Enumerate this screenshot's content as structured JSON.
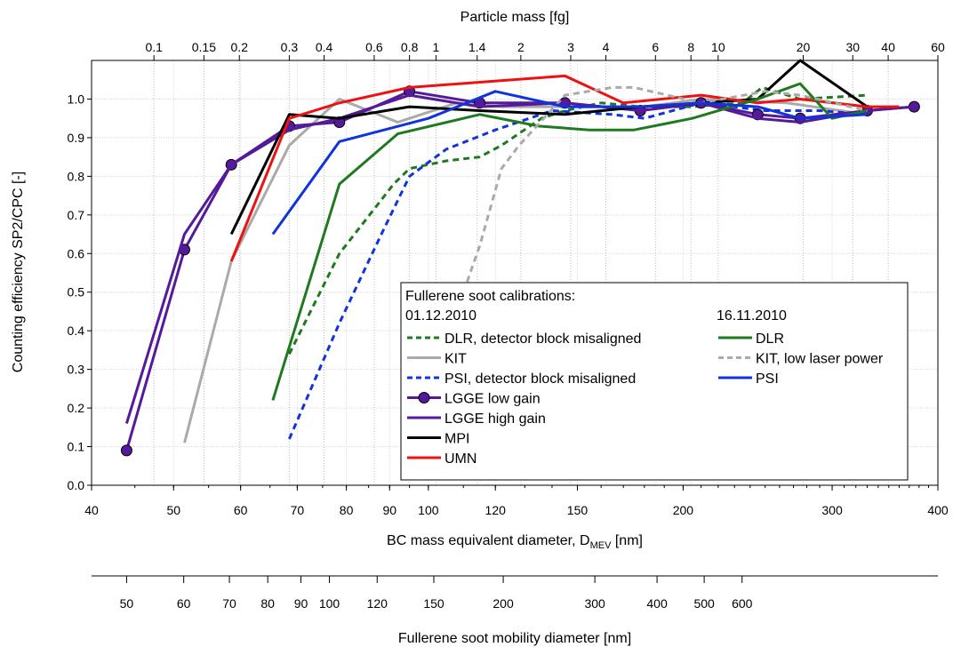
{
  "chart_data": {
    "type": "line",
    "ylabel": "Counting efficiency SP2/CPC [-]",
    "xlabel": "BC mass equivalent diameter, D",
    "xlabel_sub": "MEV",
    "xlabel_unit": " [nm]",
    "top_axis_label": "Particle mass [fg]",
    "second_bottom_axis_label": "Fullerene soot mobility diameter [nm]",
    "x_scale": "log",
    "xlim": [
      40,
      400
    ],
    "ylim": [
      0,
      1.1
    ],
    "grid": true,
    "x_ticks": [
      40,
      50,
      60,
      70,
      80,
      90,
      100,
      120,
      150,
      200,
      300,
      400
    ],
    "x_tick_labels": [
      "40",
      "50",
      "60",
      "70",
      "80",
      "90",
      "100",
      "120",
      "150",
      "200",
      "300",
      "400"
    ],
    "y_ticks": [
      0.0,
      0.1,
      0.2,
      0.3,
      0.4,
      0.5,
      0.6,
      0.7,
      0.8,
      0.9,
      1.0
    ],
    "y_tick_labels": [
      "0.0",
      "0.1",
      "0.2",
      "0.3",
      "0.4",
      "0.5",
      "0.6",
      "0.7",
      "0.8",
      "0.9",
      "1.0"
    ],
    "top_ticks": [
      0.1,
      0.15,
      0.2,
      0.3,
      0.4,
      0.6,
      0.8,
      1,
      1.4,
      2,
      3,
      4,
      6,
      8,
      10,
      20,
      30,
      40,
      60
    ],
    "top_tick_labels": [
      "0.1",
      "0.15",
      "0.2",
      "0.3",
      "0.4",
      "0.6",
      "0.8",
      "1",
      "1.4",
      "2",
      "3",
      "4",
      "6",
      "8",
      "10",
      "20",
      "30",
      "40",
      "60"
    ],
    "top_tick_diameters": [
      47.4,
      54.3,
      59.8,
      68.5,
      75.3,
      86.3,
      95.0,
      102.1,
      114.2,
      128.6,
      147.3,
      162.1,
      185.5,
      204.3,
      220.0,
      277.3,
      317.3,
      349.4,
      400.0
    ],
    "mobility_ticks": [
      50,
      60,
      70,
      80,
      90,
      100,
      120,
      150,
      200,
      300,
      400,
      500,
      600
    ],
    "mobility_tick_labels": [
      "50",
      "60",
      "70",
      "80",
      "90",
      "100",
      "120",
      "150",
      "200",
      "300",
      "400",
      "500",
      "600"
    ],
    "mobility_tick_diameters": [
      44.0,
      51.4,
      58.2,
      64.6,
      70.7,
      76.4,
      87.0,
      101.5,
      122.6,
      157.3,
      186.3,
      211.8,
      234.8
    ],
    "legend": {
      "title": "Fullerene soot calibrations:",
      "col1_header": "01.12.2010",
      "col2_header": "16.11.2010"
    },
    "series": [
      {
        "name": "DLR, detector block misaligned",
        "color": "#1f7a1f",
        "dash": "dashed",
        "marker": "none",
        "legend_col": 1,
        "legend_row": 0,
        "x": [
          68.5,
          78.5,
          91,
          95,
          105,
          115,
          122,
          136,
          145,
          160,
          178,
          205,
          235,
          248,
          275,
          330
        ],
        "y": [
          0.34,
          0.6,
          0.78,
          0.82,
          0.84,
          0.85,
          0.88,
          0.95,
          0.97,
          0.99,
          0.98,
          0.98,
          0.99,
          1.03,
          1.0,
          1.01
        ]
      },
      {
        "name": "KIT",
        "color": "#aaaaaa",
        "dash": "solid",
        "marker": "none",
        "legend_col": 1,
        "legend_row": 1,
        "x": [
          51.5,
          58.5,
          68.5,
          78.5,
          92,
          108,
          122,
          145,
          180,
          210,
          265,
          330
        ],
        "y": [
          0.11,
          0.58,
          0.88,
          1.0,
          0.94,
          0.99,
          0.98,
          0.98,
          0.98,
          1.0,
          0.99,
          0.96
        ]
      },
      {
        "name": "PSI, detector block misaligned",
        "color": "#1133dd",
        "dash": "dashed",
        "marker": "none",
        "legend_col": 1,
        "legend_row": 2,
        "x": [
          68.5,
          78.5,
          88,
          95,
          105,
          120,
          140,
          165,
          180,
          210,
          250,
          290,
          330
        ],
        "y": [
          0.12,
          0.42,
          0.65,
          0.8,
          0.87,
          0.92,
          0.97,
          0.96,
          0.95,
          0.99,
          0.97,
          0.97,
          0.96
        ]
      },
      {
        "name": "LGGE low gain",
        "color": "#551a99",
        "dash": "solid",
        "marker": "circle",
        "legend_col": 1,
        "legend_row": 3,
        "x": [
          44,
          51.5,
          58.5,
          68.5,
          78.5,
          95,
          115,
          145,
          178,
          210,
          245,
          275,
          330,
          375
        ],
        "y": [
          0.09,
          0.61,
          0.83,
          0.93,
          0.94,
          1.02,
          0.99,
          0.99,
          0.97,
          0.99,
          0.96,
          0.95,
          0.97,
          0.98
        ]
      },
      {
        "name": "LGGE high gain",
        "color": "#551a99",
        "dash": "solid",
        "marker": "none",
        "legend_col": 1,
        "legend_row": 4,
        "x": [
          44,
          51.5,
          58.5,
          68.5,
          78.5,
          95,
          115,
          145,
          178,
          210,
          245,
          275,
          330,
          375
        ],
        "y": [
          0.16,
          0.65,
          0.83,
          0.92,
          0.95,
          1.01,
          0.98,
          0.99,
          0.97,
          0.99,
          0.95,
          0.94,
          0.97,
          0.98
        ]
      },
      {
        "name": "MPI",
        "color": "#000000",
        "dash": "solid",
        "marker": "none",
        "legend_col": 1,
        "legend_row": 5,
        "x": [
          58.5,
          68.5,
          78.5,
          95,
          115,
          145,
          178,
          210,
          245,
          275,
          330
        ],
        "y": [
          0.65,
          0.96,
          0.95,
          0.98,
          0.97,
          0.96,
          0.98,
          0.99,
          1.0,
          1.1,
          0.98
        ]
      },
      {
        "name": "UMN",
        "color": "#ee1111",
        "dash": "solid",
        "marker": "none",
        "legend_col": 1,
        "legend_row": 6,
        "x": [
          58.5,
          68.5,
          78.5,
          95,
          145,
          170,
          210,
          245,
          275,
          330,
          360
        ],
        "y": [
          0.58,
          0.95,
          0.99,
          1.03,
          1.06,
          0.99,
          1.01,
          0.99,
          1.0,
          0.98,
          0.98
        ]
      },
      {
        "name": "DLR",
        "color": "#1f7a1f",
        "dash": "solid",
        "marker": "none",
        "legend_col": 2,
        "legend_row": 0,
        "x": [
          65.5,
          78.5,
          92,
          115,
          135,
          155,
          175,
          205,
          245,
          275,
          300,
          330
        ],
        "y": [
          0.22,
          0.78,
          0.91,
          0.96,
          0.93,
          0.92,
          0.92,
          0.95,
          1.0,
          1.04,
          0.95,
          0.97
        ]
      },
      {
        "name": "KIT, low laser power",
        "color": "#aaaaaa",
        "dash": "dashed",
        "marker": "none",
        "legend_col": 2,
        "legend_row": 1,
        "x": [
          100,
          115,
          122,
          128,
          145,
          165,
          175,
          210,
          250,
          275,
          330
        ],
        "y": [
          0.24,
          0.62,
          0.82,
          0.88,
          1.01,
          1.03,
          1.03,
          0.99,
          1.02,
          1.01,
          0.97
        ]
      },
      {
        "name": "PSI",
        "color": "#1133dd",
        "dash": "solid",
        "marker": "none",
        "legend_col": 2,
        "legend_row": 2,
        "x": [
          65.5,
          78.5,
          100,
          120,
          145,
          178,
          210,
          245,
          275,
          330
        ],
        "y": [
          0.65,
          0.89,
          0.95,
          1.02,
          0.98,
          0.98,
          0.99,
          0.98,
          0.95,
          0.96
        ]
      }
    ]
  }
}
